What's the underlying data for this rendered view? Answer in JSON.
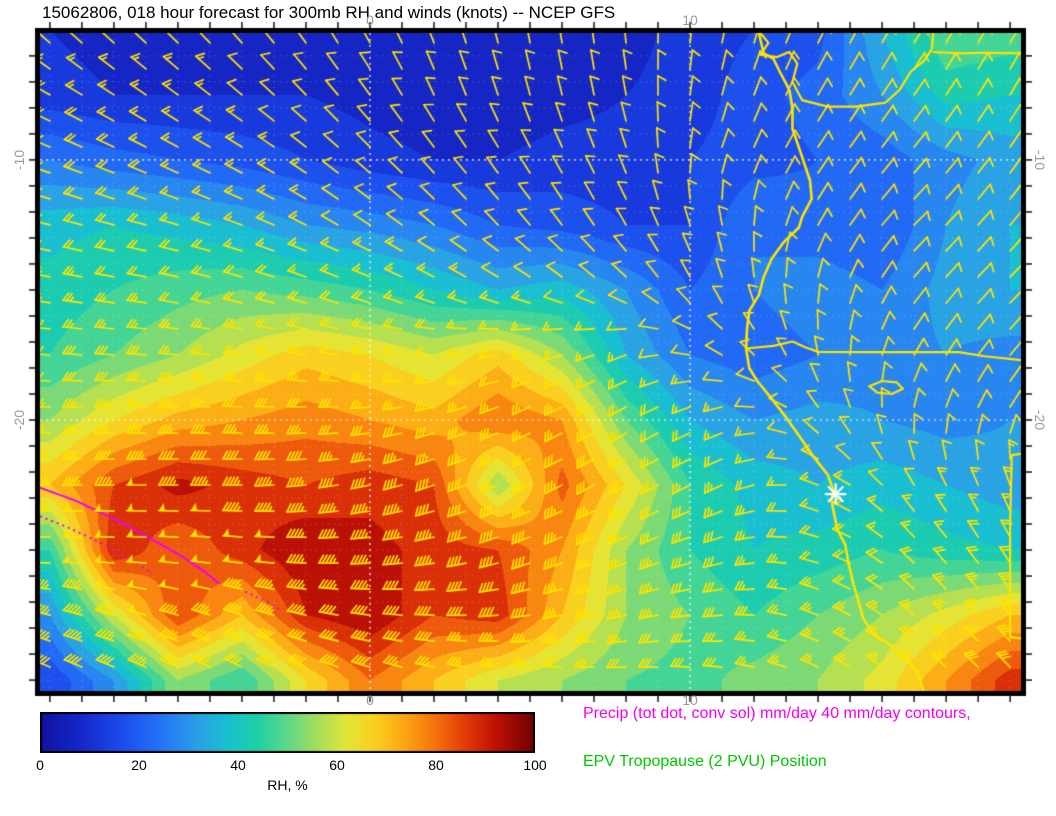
{
  "header": {
    "title": "15062806, 018 hour forecast for 300mb RH and winds (knots) -- NCEP GFS"
  },
  "axes": {
    "x_tick_labels": [
      "0",
      "10"
    ],
    "x_tick_lons": [
      0,
      10
    ],
    "y_tick_labels": [
      "-10",
      "-20"
    ],
    "y_tick_lats": [
      -10,
      -20
    ]
  },
  "colorbar": {
    "label": "RH, %",
    "tick_labels": [
      "0",
      "20",
      "40",
      "60",
      "80",
      "100"
    ],
    "tick_values": [
      0,
      20,
      40,
      60,
      80,
      100
    ],
    "min": 0,
    "max": 100
  },
  "legend": {
    "precip_label": "Precip (tot dot, conv sol) mm/day 40 mm/day contours,",
    "precip_color": "#f000f0",
    "epv_label": "EPV Tropopause (2 PVU) Position",
    "epv_color": "#00c800"
  },
  "chart_data": {
    "type": "heatmap",
    "title": "15062806, 018 hour forecast for 300mb RH and winds (knots) -- NCEP GFS",
    "field": "300mb relative humidity (%) with wind barbs (knots)",
    "source": "NCEP GFS",
    "lon_range": [
      -10.31,
      20.34
    ],
    "lat_range": [
      -30.42,
      -5.12
    ],
    "grid_lons": [
      0,
      10
    ],
    "grid_lats": [
      -10,
      -20
    ],
    "colormap": [
      [
        0,
        "#10129e"
      ],
      [
        8,
        "#1527c8"
      ],
      [
        16,
        "#1b49ec"
      ],
      [
        24,
        "#2472f8"
      ],
      [
        32,
        "#2ba0e6"
      ],
      [
        38,
        "#17c2cf"
      ],
      [
        44,
        "#1fd0a6"
      ],
      [
        50,
        "#5ed88a"
      ],
      [
        56,
        "#a5de5a"
      ],
      [
        62,
        "#e3e636"
      ],
      [
        68,
        "#fbce1e"
      ],
      [
        74,
        "#fca313"
      ],
      [
        80,
        "#f5710d"
      ],
      [
        86,
        "#e33a08"
      ],
      [
        92,
        "#c01105"
      ],
      [
        100,
        "#700000"
      ]
    ],
    "rh_lons": [
      -10,
      -8,
      -6,
      -4,
      -2,
      0,
      2,
      4,
      6,
      8,
      10,
      12,
      14,
      16,
      18,
      20
    ],
    "rh_lats": [
      -5,
      -7.5,
      -10,
      -12.5,
      -15,
      -17.5,
      -20,
      -22.5,
      -25,
      -27.5,
      -30
    ],
    "rh_values": [
      [
        10,
        8,
        8,
        8,
        8,
        6,
        5,
        5,
        6,
        8,
        12,
        15,
        18,
        35,
        50,
        48
      ],
      [
        12,
        10,
        10,
        10,
        10,
        8,
        6,
        6,
        8,
        10,
        12,
        18,
        22,
        30,
        42,
        40
      ],
      [
        25,
        22,
        20,
        18,
        15,
        12,
        10,
        10,
        12,
        12,
        15,
        18,
        20,
        22,
        28,
        32
      ],
      [
        38,
        40,
        38,
        35,
        30,
        28,
        25,
        20,
        18,
        15,
        15,
        25,
        22,
        20,
        30,
        35
      ],
      [
        42,
        45,
        48,
        50,
        48,
        45,
        40,
        35,
        38,
        30,
        20,
        25,
        28,
        25,
        32,
        35
      ],
      [
        45,
        50,
        55,
        62,
        68,
        65,
        60,
        68,
        55,
        35,
        25,
        22,
        25,
        28,
        30,
        28
      ],
      [
        55,
        65,
        72,
        75,
        78,
        75,
        72,
        80,
        75,
        50,
        35,
        30,
        32,
        30,
        28,
        30
      ],
      [
        70,
        85,
        92,
        88,
        85,
        88,
        85,
        55,
        82,
        65,
        45,
        38,
        35,
        38,
        35,
        32
      ],
      [
        45,
        90,
        80,
        88,
        95,
        92,
        88,
        85,
        75,
        55,
        45,
        40,
        42,
        45,
        42,
        40
      ],
      [
        30,
        60,
        85,
        70,
        90,
        95,
        85,
        88,
        70,
        55,
        50,
        45,
        50,
        55,
        62,
        70
      ],
      [
        15,
        30,
        55,
        45,
        65,
        80,
        70,
        60,
        55,
        50,
        48,
        52,
        55,
        62,
        75,
        88
      ]
    ],
    "wind_lons": [
      -10,
      -7,
      -4,
      -1,
      2,
      5,
      8,
      11,
      14,
      17,
      20
    ],
    "wind_lats": [
      -5,
      -7.5,
      -10,
      -12.5,
      -15,
      -17.5,
      -20,
      -22.5,
      -25,
      -27.5,
      -30
    ],
    "wind_dir_from_deg": [
      [
        315,
        315,
        320,
        330,
        340,
        350,
        355,
        10,
        25,
        30,
        30
      ],
      [
        300,
        305,
        310,
        320,
        335,
        345,
        350,
        15,
        30,
        35,
        30
      ],
      [
        290,
        295,
        300,
        310,
        320,
        330,
        340,
        20,
        35,
        40,
        35
      ],
      [
        285,
        285,
        290,
        300,
        310,
        320,
        330,
        350,
        30,
        45,
        40
      ],
      [
        280,
        280,
        285,
        290,
        295,
        300,
        310,
        340,
        10,
        40,
        45
      ],
      [
        275,
        275,
        278,
        280,
        270,
        255,
        250,
        300,
        350,
        30,
        40
      ],
      [
        270,
        270,
        272,
        268,
        255,
        245,
        240,
        250,
        320,
        10,
        30
      ],
      [
        268,
        270,
        270,
        262,
        252,
        245,
        240,
        245,
        290,
        330,
        340
      ],
      [
        270,
        272,
        275,
        268,
        260,
        250,
        248,
        255,
        285,
        315,
        330
      ],
      [
        285,
        285,
        288,
        280,
        272,
        262,
        258,
        265,
        290,
        310,
        320
      ],
      [
        295,
        295,
        298,
        292,
        285,
        278,
        272,
        278,
        295,
        310,
        315
      ]
    ],
    "wind_speed_kt": [
      [
        15,
        15,
        12,
        10,
        8,
        8,
        8,
        10,
        12,
        12,
        10
      ],
      [
        18,
        15,
        12,
        10,
        8,
        8,
        8,
        10,
        12,
        12,
        10
      ],
      [
        20,
        18,
        15,
        12,
        10,
        8,
        8,
        10,
        10,
        12,
        12
      ],
      [
        20,
        18,
        15,
        12,
        10,
        10,
        8,
        8,
        10,
        12,
        12
      ],
      [
        25,
        22,
        20,
        18,
        15,
        12,
        10,
        8,
        8,
        10,
        12
      ],
      [
        30,
        28,
        25,
        22,
        20,
        20,
        15,
        10,
        8,
        10,
        12
      ],
      [
        35,
        35,
        32,
        30,
        28,
        25,
        22,
        15,
        10,
        10,
        12
      ],
      [
        45,
        48,
        45,
        42,
        40,
        35,
        30,
        25,
        15,
        12,
        15
      ],
      [
        50,
        52,
        50,
        48,
        45,
        40,
        35,
        30,
        20,
        18,
        20
      ],
      [
        45,
        48,
        45,
        42,
        40,
        38,
        35,
        30,
        25,
        25,
        28
      ],
      [
        40,
        42,
        40,
        38,
        35,
        32,
        30,
        28,
        25,
        28,
        30
      ]
    ],
    "barb_color": "#ffe400",
    "outline_color": "#ffe400",
    "precip_color": "#f000f0",
    "coastline": [
      [
        12.15,
        -5.12
      ],
      [
        12.3,
        -5.9
      ],
      [
        12.6,
        -6.1
      ],
      [
        12.8,
        -6.6
      ],
      [
        13.1,
        -7.3
      ],
      [
        13.2,
        -8.0
      ],
      [
        13.2,
        -8.8
      ],
      [
        13.45,
        -9.7
      ],
      [
        13.75,
        -10.8
      ],
      [
        13.8,
        -11.5
      ],
      [
        13.5,
        -12.2
      ],
      [
        13.4,
        -12.6
      ],
      [
        12.9,
        -13.2
      ],
      [
        12.55,
        -13.8
      ],
      [
        12.3,
        -14.5
      ],
      [
        12.15,
        -15.2
      ],
      [
        11.85,
        -15.8
      ],
      [
        11.78,
        -16.5
      ],
      [
        11.75,
        -17.25
      ],
      [
        11.85,
        -18.0
      ],
      [
        12.1,
        -18.5
      ],
      [
        12.5,
        -19.1
      ],
      [
        13.0,
        -19.9
      ],
      [
        13.4,
        -20.6
      ],
      [
        13.85,
        -21.4
      ],
      [
        14.3,
        -22.1
      ],
      [
        14.48,
        -22.7
      ],
      [
        14.42,
        -23.1
      ],
      [
        14.5,
        -23.6
      ],
      [
        14.6,
        -24.2
      ],
      [
        14.85,
        -24.8
      ],
      [
        14.95,
        -25.5
      ],
      [
        15.1,
        -26.3
      ],
      [
        15.25,
        -26.9
      ],
      [
        15.4,
        -27.6
      ],
      [
        15.7,
        -28.2
      ],
      [
        16.2,
        -28.6
      ],
      [
        16.7,
        -29.1
      ],
      [
        17.1,
        -29.7
      ],
      [
        17.3,
        -30.42
      ]
    ],
    "borders": [
      [
        [
          12.2,
          -5.12
        ],
        [
          12.45,
          -5.5
        ],
        [
          12.2,
          -5.95
        ],
        [
          12.7,
          -6.05
        ],
        [
          13.1,
          -5.85
        ],
        [
          13.35,
          -6.3
        ],
        [
          13.2,
          -7.0
        ],
        [
          13.5,
          -7.7
        ],
        [
          14.3,
          -7.95
        ],
        [
          15.2,
          -7.95
        ],
        [
          16.1,
          -7.8
        ],
        [
          16.55,
          -7.3
        ],
        [
          16.9,
          -6.6
        ],
        [
          17.3,
          -6.2
        ],
        [
          17.55,
          -5.75
        ],
        [
          17.6,
          -5.12
        ]
      ],
      [
        [
          17.6,
          -5.85
        ],
        [
          18.4,
          -5.9
        ],
        [
          19.2,
          -5.88
        ],
        [
          20.34,
          -5.9
        ]
      ],
      [
        [
          11.75,
          -17.25
        ],
        [
          12.6,
          -17.15
        ],
        [
          13.2,
          -16.98
        ],
        [
          13.6,
          -17.2
        ],
        [
          14.0,
          -17.38
        ],
        [
          15.5,
          -17.39
        ],
        [
          17.0,
          -17.39
        ],
        [
          18.4,
          -17.39
        ],
        [
          19.2,
          -17.55
        ],
        [
          20.34,
          -17.7
        ]
      ],
      [
        [
          20.34,
          -21.3
        ],
        [
          20.05,
          -21.35
        ],
        [
          20.0,
          -24.0
        ],
        [
          20.0,
          -28.35
        ],
        [
          20.34,
          -28.4
        ]
      ],
      [
        [
          15.6,
          -18.7
        ],
        [
          16.0,
          -18.5
        ],
        [
          16.45,
          -18.55
        ],
        [
          16.65,
          -18.8
        ],
        [
          16.3,
          -19.0
        ],
        [
          15.85,
          -18.95
        ],
        [
          15.6,
          -18.7
        ]
      ]
    ],
    "precip_contours_solid": [
      [
        [
          -10.31,
          -22.6
        ],
        [
          -9.2,
          -23.1
        ],
        [
          -8.0,
          -23.8
        ],
        [
          -6.8,
          -24.6
        ],
        [
          -5.8,
          -25.3
        ],
        [
          -5.1,
          -25.9
        ],
        [
          -4.7,
          -26.3
        ]
      ]
    ],
    "precip_contours_dotted": [
      [
        [
          -10.31,
          -23.7
        ],
        [
          -9.3,
          -24.2
        ],
        [
          -8.3,
          -24.8
        ],
        [
          -7.4,
          -25.4
        ],
        [
          -6.8,
          -25.9
        ]
      ],
      [
        [
          -3.9,
          -26.6
        ],
        [
          -3.2,
          -27.0
        ],
        [
          -2.8,
          -27.3
        ]
      ]
    ],
    "marker": {
      "lon": 14.55,
      "lat": -22.85,
      "symbol": "asterisk",
      "color": "#ffffff"
    }
  }
}
